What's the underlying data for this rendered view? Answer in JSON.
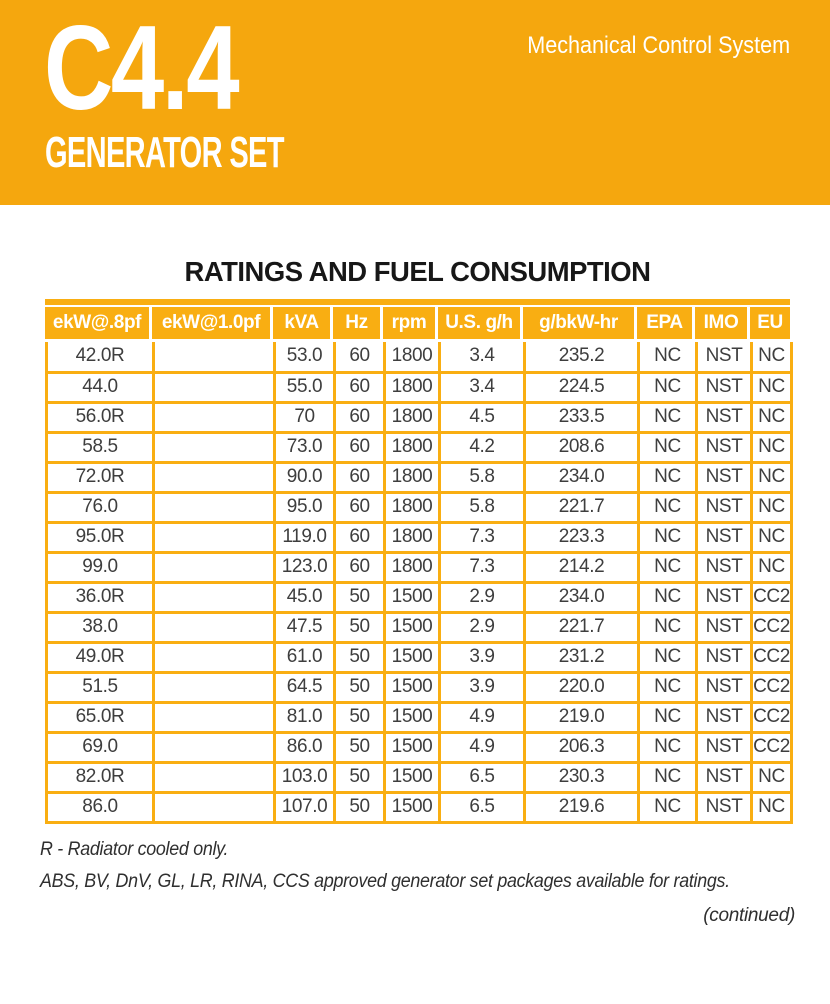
{
  "colors": {
    "banner_yellow": "#F5A70E",
    "table_yellow": "#F9AE12",
    "header_text": "#FFFFFF",
    "body_text": "#3E3E3E"
  },
  "banner": {
    "model": "C4.4",
    "subtitle": "GENERATOR SET",
    "tagline": "Mechanical Control System"
  },
  "table": {
    "title": "RATINGS AND FUEL CONSUMPTION",
    "columns": [
      "ekW@.8pf",
      "ekW@1.0pf",
      "kVA",
      "Hz",
      "rpm",
      "U.S. g/h",
      "g/bkW-hr",
      "EPA",
      "IMO",
      "EU"
    ],
    "rows": [
      [
        "42.0R",
        "",
        "53.0",
        "60",
        "1800",
        "3.4",
        "235.2",
        "NC",
        "NST",
        "NC"
      ],
      [
        "44.0",
        "",
        "55.0",
        "60",
        "1800",
        "3.4",
        "224.5",
        "NC",
        "NST",
        "NC"
      ],
      [
        "56.0R",
        "",
        "70",
        "60",
        "1800",
        "4.5",
        "233.5",
        "NC",
        "NST",
        "NC"
      ],
      [
        "58.5",
        "",
        "73.0",
        "60",
        "1800",
        "4.2",
        "208.6",
        "NC",
        "NST",
        "NC"
      ],
      [
        "72.0R",
        "",
        "90.0",
        "60",
        "1800",
        "5.8",
        "234.0",
        "NC",
        "NST",
        "NC"
      ],
      [
        "76.0",
        "",
        "95.0",
        "60",
        "1800",
        "5.8",
        "221.7",
        "NC",
        "NST",
        "NC"
      ],
      [
        "95.0R",
        "",
        "119.0",
        "60",
        "1800",
        "7.3",
        "223.3",
        "NC",
        "NST",
        "NC"
      ],
      [
        "99.0",
        "",
        "123.0",
        "60",
        "1800",
        "7.3",
        "214.2",
        "NC",
        "NST",
        "NC"
      ],
      [
        "36.0R",
        "",
        "45.0",
        "50",
        "1500",
        "2.9",
        "234.0",
        "NC",
        "NST",
        "CC2"
      ],
      [
        "38.0",
        "",
        "47.5",
        "50",
        "1500",
        "2.9",
        "221.7",
        "NC",
        "NST",
        "CC2"
      ],
      [
        "49.0R",
        "",
        "61.0",
        "50",
        "1500",
        "3.9",
        "231.2",
        "NC",
        "NST",
        "CC2"
      ],
      [
        "51.5",
        "",
        "64.5",
        "50",
        "1500",
        "3.9",
        "220.0",
        "NC",
        "NST",
        "CC2"
      ],
      [
        "65.0R",
        "",
        "81.0",
        "50",
        "1500",
        "4.9",
        "219.0",
        "NC",
        "NST",
        "CC2"
      ],
      [
        "69.0",
        "",
        "86.0",
        "50",
        "1500",
        "4.9",
        "206.3",
        "NC",
        "NST",
        "CC2"
      ],
      [
        "82.0R",
        "",
        "103.0",
        "50",
        "1500",
        "6.5",
        "230.3",
        "NC",
        "NST",
        "NC"
      ],
      [
        "86.0",
        "",
        "107.0",
        "50",
        "1500",
        "6.5",
        "219.6",
        "NC",
        "NST",
        "NC"
      ]
    ]
  },
  "notes": {
    "note1": "R - Radiator cooled only.",
    "note2": "ABS, BV, DnV, GL, LR, RINA, CCS approved generator set packages available for ratings.",
    "continued": "(continued)"
  }
}
